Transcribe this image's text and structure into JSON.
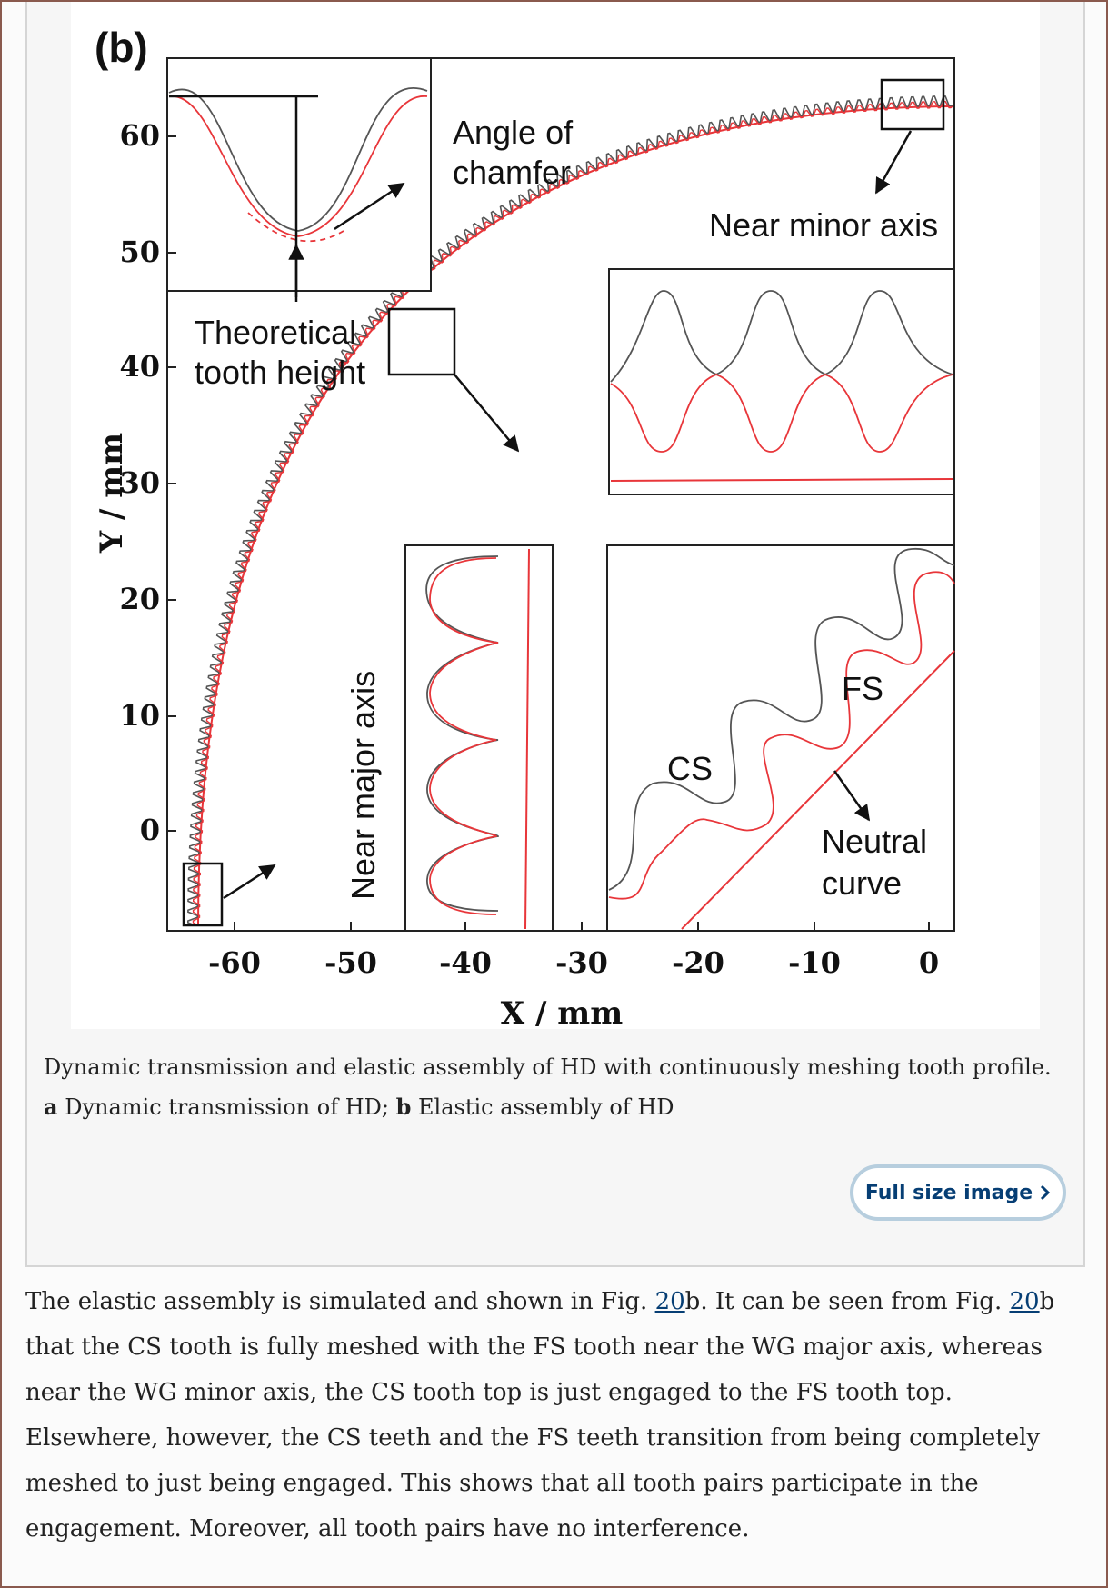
{
  "figure": {
    "panel_label": "(b)",
    "x_axis_label": "X / mm",
    "y_axis_label": "Y / mm",
    "x_ticks": [
      "-60",
      "-50",
      "-40",
      "-30",
      "-20",
      "-10",
      "0"
    ],
    "y_ticks": [
      "60",
      "50",
      "40",
      "30",
      "20",
      "10",
      "0"
    ],
    "annotations": {
      "angle_of_chamfer_1": "Angle of",
      "angle_of_chamfer_2": "chamfer",
      "near_minor_axis": "Near minor axis",
      "theoretical_1": "Theoretical",
      "theoretical_2": "tooth height",
      "near_major_axis": "Near major axis",
      "cs": "CS",
      "fs": "FS",
      "neutral_1": "Neutral",
      "neutral_2": "curve"
    },
    "colors": {
      "cs_profile": "#555555",
      "fs_profile": "#e8363a"
    }
  },
  "caption": {
    "text_1": "Dynamic transmission and elastic assembly of HD with continuously meshing tooth profile.",
    "label_a": "a",
    "text_a": "Dynamic transmission of HD;",
    "label_b": "b",
    "text_b": "Elastic assembly of HD"
  },
  "full_size_button": {
    "label": "Full size image",
    "icon": "chevron-right-icon"
  },
  "body": {
    "part1": "The elastic assembly is simulated and shown in Fig.",
    "fig_ref_1": "20",
    "part2": "b. It can be seen from Fig.",
    "fig_ref_2": "20",
    "part3": "b that the CS tooth is fully meshed with the FS tooth near the WG major axis, whereas near the WG minor axis, the CS tooth top is just engaged to the FS tooth top. Elsewhere, however, the CS teeth and the FS teeth transition from being completely meshed to just being engaged. This shows that all tooth pairs participate in the engagement. Moreover, all tooth pairs have no interference."
  }
}
